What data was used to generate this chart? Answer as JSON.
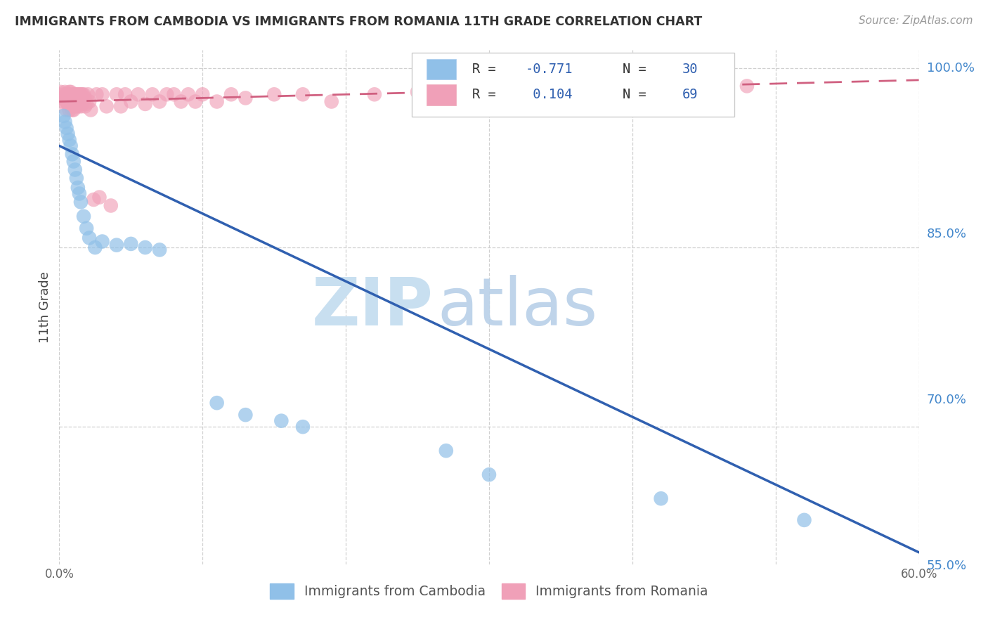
{
  "title": "IMMIGRANTS FROM CAMBODIA VS IMMIGRANTS FROM ROMANIA 11TH GRADE CORRELATION CHART",
  "source_text": "Source: ZipAtlas.com",
  "ylabel": "11th Grade",
  "legend_label_blue": "Immigrants from Cambodia",
  "legend_label_pink": "Immigrants from Romania",
  "R_blue": -0.771,
  "N_blue": 30,
  "R_pink": 0.104,
  "N_pink": 69,
  "xlim": [
    0.0,
    0.6
  ],
  "ylim": [
    0.585,
    1.015
  ],
  "ytick_positions": [
    1.0,
    0.85,
    0.7,
    0.55
  ],
  "ytick_labels": [
    "100.0%",
    "85.0%",
    "70.0%",
    "55.0%"
  ],
  "xtick_positions": [
    0.0,
    0.1,
    0.2,
    0.3,
    0.4,
    0.5,
    0.6
  ],
  "xtick_labels": [
    "0.0%",
    "",
    "",
    "",
    "",
    "",
    "60.0%"
  ],
  "background_color": "#ffffff",
  "grid_color": "#d0d0d0",
  "blue_color": "#90c0e8",
  "blue_line_color": "#3060b0",
  "pink_color": "#f0a0b8",
  "pink_line_color": "#d06080",
  "number_color": "#3060b0",
  "watermark_zip_color": "#c8dff0",
  "watermark_atlas_color": "#b8d0e8",
  "blue_scatter_x": [
    0.003,
    0.004,
    0.005,
    0.006,
    0.007,
    0.008,
    0.009,
    0.01,
    0.011,
    0.012,
    0.013,
    0.014,
    0.015,
    0.017,
    0.019,
    0.021,
    0.025,
    0.03,
    0.04,
    0.05,
    0.06,
    0.07,
    0.11,
    0.13,
    0.155,
    0.17,
    0.27,
    0.3,
    0.42,
    0.52
  ],
  "blue_scatter_y": [
    0.96,
    0.955,
    0.95,
    0.945,
    0.94,
    0.935,
    0.928,
    0.922,
    0.915,
    0.908,
    0.9,
    0.895,
    0.888,
    0.876,
    0.866,
    0.858,
    0.85,
    0.855,
    0.852,
    0.853,
    0.85,
    0.848,
    0.72,
    0.71,
    0.705,
    0.7,
    0.68,
    0.66,
    0.64,
    0.622
  ],
  "pink_scatter_x": [
    0.001,
    0.002,
    0.003,
    0.003,
    0.004,
    0.004,
    0.005,
    0.005,
    0.005,
    0.006,
    0.006,
    0.007,
    0.007,
    0.007,
    0.008,
    0.008,
    0.009,
    0.009,
    0.01,
    0.01,
    0.01,
    0.011,
    0.011,
    0.012,
    0.012,
    0.013,
    0.013,
    0.014,
    0.015,
    0.015,
    0.016,
    0.016,
    0.017,
    0.018,
    0.018,
    0.019,
    0.02,
    0.021,
    0.022,
    0.024,
    0.026,
    0.028,
    0.03,
    0.033,
    0.036,
    0.04,
    0.043,
    0.046,
    0.05,
    0.055,
    0.06,
    0.065,
    0.07,
    0.075,
    0.08,
    0.085,
    0.09,
    0.095,
    0.1,
    0.11,
    0.12,
    0.13,
    0.15,
    0.17,
    0.19,
    0.22,
    0.25,
    0.35,
    0.48
  ],
  "pink_scatter_y": [
    0.98,
    0.975,
    0.978,
    0.972,
    0.98,
    0.973,
    0.978,
    0.972,
    0.965,
    0.978,
    0.97,
    0.98,
    0.972,
    0.965,
    0.98,
    0.972,
    0.978,
    0.965,
    0.978,
    0.972,
    0.965,
    0.978,
    0.968,
    0.978,
    0.97,
    0.978,
    0.968,
    0.978,
    0.978,
    0.968,
    0.978,
    0.97,
    0.978,
    0.975,
    0.968,
    0.97,
    0.978,
    0.972,
    0.965,
    0.89,
    0.978,
    0.892,
    0.978,
    0.968,
    0.885,
    0.978,
    0.968,
    0.978,
    0.972,
    0.978,
    0.97,
    0.978,
    0.972,
    0.978,
    0.978,
    0.972,
    0.978,
    0.972,
    0.978,
    0.972,
    0.978,
    0.975,
    0.978,
    0.978,
    0.972,
    0.978,
    0.98,
    0.982,
    0.985
  ],
  "blue_line_x0": 0.0,
  "blue_line_y0": 0.935,
  "blue_line_x1": 0.6,
  "blue_line_y1": 0.595,
  "pink_line_x0": 0.0,
  "pink_line_y0": 0.972,
  "pink_line_x1": 0.6,
  "pink_line_y1": 0.99
}
